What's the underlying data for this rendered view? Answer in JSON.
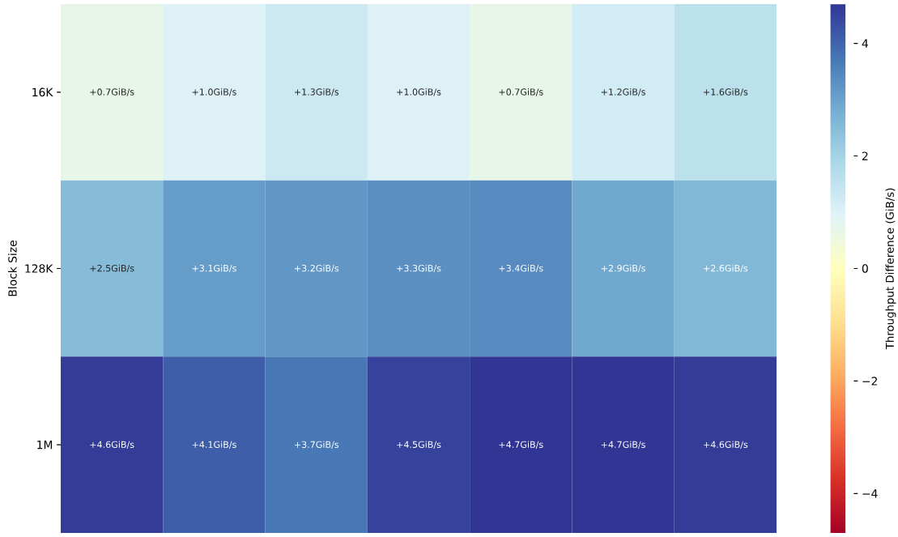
{
  "chart_data": {
    "type": "heatmap",
    "categories": [
      null,
      null,
      null,
      null,
      null,
      null,
      null
    ],
    "y_categories": [
      "16K",
      "128K",
      "1M"
    ],
    "ylabel": "Block Size",
    "clabel": "Throughput Difference (GiB/s)",
    "cells": [
      [
        0.7,
        1.0,
        1.3,
        1.0,
        0.7,
        1.2,
        1.6
      ],
      [
        2.5,
        3.1,
        3.2,
        3.3,
        3.4,
        2.9,
        2.6
      ],
      [
        4.6,
        4.1,
        3.7,
        4.5,
        4.7,
        4.7,
        4.6
      ]
    ],
    "cell_labels": [
      [
        "+0.7GiB/s",
        "+1.0GiB/s",
        "+1.3GiB/s",
        "+1.0GiB/s",
        "+0.7GiB/s",
        "+1.2GiB/s",
        "+1.6GiB/s"
      ],
      [
        "+2.5GiB/s",
        "+3.1GiB/s",
        "+3.2GiB/s",
        "+3.3GiB/s",
        "+3.4GiB/s",
        "+2.9GiB/s",
        "+2.6GiB/s"
      ],
      [
        "+4.6GiB/s",
        "+4.1GiB/s",
        "+3.7GiB/s",
        "+4.5GiB/s",
        "+4.7GiB/s",
        "+4.7GiB/s",
        "+4.6GiB/s"
      ]
    ],
    "clim": [
      -4.7,
      4.7
    ],
    "cticks": [
      {
        "value": -4,
        "label": "−4"
      },
      {
        "value": -2,
        "label": "−2"
      },
      0,
      2,
      4
    ]
  }
}
